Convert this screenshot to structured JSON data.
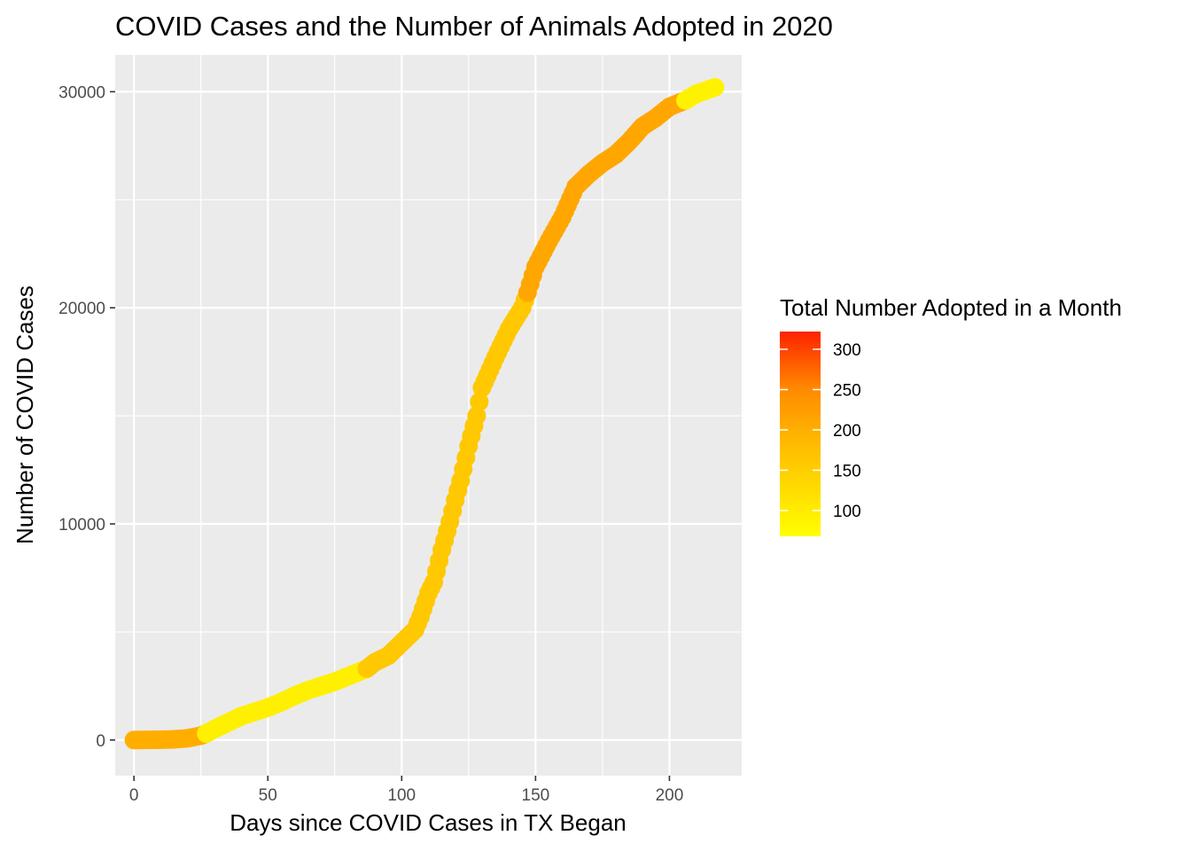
{
  "chart_data": {
    "type": "scatter",
    "title": "COVID Cases and the Number of Animals Adopted in 2020",
    "xlabel": "Days since COVID Cases in TX Began",
    "ylabel": "Number of COVID Cases",
    "xlim": [
      -7,
      227
    ],
    "ylim": [
      -1650,
      31700
    ],
    "x_ticks": [
      0,
      50,
      100,
      150,
      200
    ],
    "x_tick_labels": [
      "0",
      "50",
      "100",
      "150",
      "200"
    ],
    "y_ticks": [
      0,
      10000,
      20000,
      30000
    ],
    "y_tick_labels": [
      "0",
      "10000",
      "20000",
      "30000"
    ],
    "grid": true,
    "background": "#ebebeb",
    "point_color_low": "#ffff00",
    "point_color_high": "#ff2200",
    "legend": {
      "title": "Total Number Adopted in a Month",
      "placement": "right",
      "range": [
        68,
        322
      ],
      "ticks": [
        100,
        150,
        200,
        250,
        300
      ],
      "tick_labels": [
        "100",
        "150",
        "200",
        "250",
        "300"
      ]
    },
    "color_variable_by_segment": [
      {
        "x_from": 0,
        "x_to": 27,
        "adopted": 200
      },
      {
        "x_from": 27,
        "x_to": 87,
        "adopted": 95
      },
      {
        "x_from": 87,
        "x_to": 147,
        "adopted": 160
      },
      {
        "x_from": 147,
        "x_to": 206,
        "adopted": 210
      },
      {
        "x_from": 206,
        "x_to": 217,
        "adopted": 90
      }
    ],
    "series": [
      {
        "x": [
          0,
          5,
          10,
          15,
          20,
          25,
          27,
          30,
          35,
          40,
          45,
          50,
          55,
          60,
          65,
          70,
          75,
          80,
          85,
          87,
          90,
          95,
          100,
          105,
          107,
          110,
          112,
          115,
          118,
          120,
          122,
          125,
          128,
          130,
          135,
          140,
          145,
          147,
          150,
          155,
          160,
          165,
          170,
          175,
          180,
          185,
          190,
          195,
          200,
          206,
          210,
          217
        ],
        "y": [
          0,
          5,
          15,
          30,
          80,
          200,
          300,
          500,
          800,
          1100,
          1300,
          1500,
          1750,
          2050,
          2300,
          2500,
          2700,
          2950,
          3200,
          3300,
          3600,
          3900,
          4500,
          5100,
          5700,
          6800,
          7300,
          8800,
          10100,
          11100,
          12000,
          13600,
          15000,
          16300,
          17700,
          19000,
          20000,
          20700,
          21900,
          23100,
          24200,
          25600,
          26200,
          26700,
          27100,
          27700,
          28400,
          28800,
          29300,
          29600,
          29900,
          30200
        ],
        "adopted": [
          200,
          200,
          200,
          200,
          200,
          200,
          95,
          95,
          95,
          95,
          95,
          95,
          95,
          95,
          95,
          95,
          95,
          95,
          95,
          160,
          160,
          160,
          160,
          160,
          160,
          160,
          160,
          160,
          160,
          160,
          160,
          160,
          160,
          160,
          160,
          160,
          160,
          210,
          210,
          210,
          210,
          210,
          210,
          210,
          210,
          210,
          210,
          210,
          210,
          90,
          90,
          90
        ]
      }
    ]
  }
}
